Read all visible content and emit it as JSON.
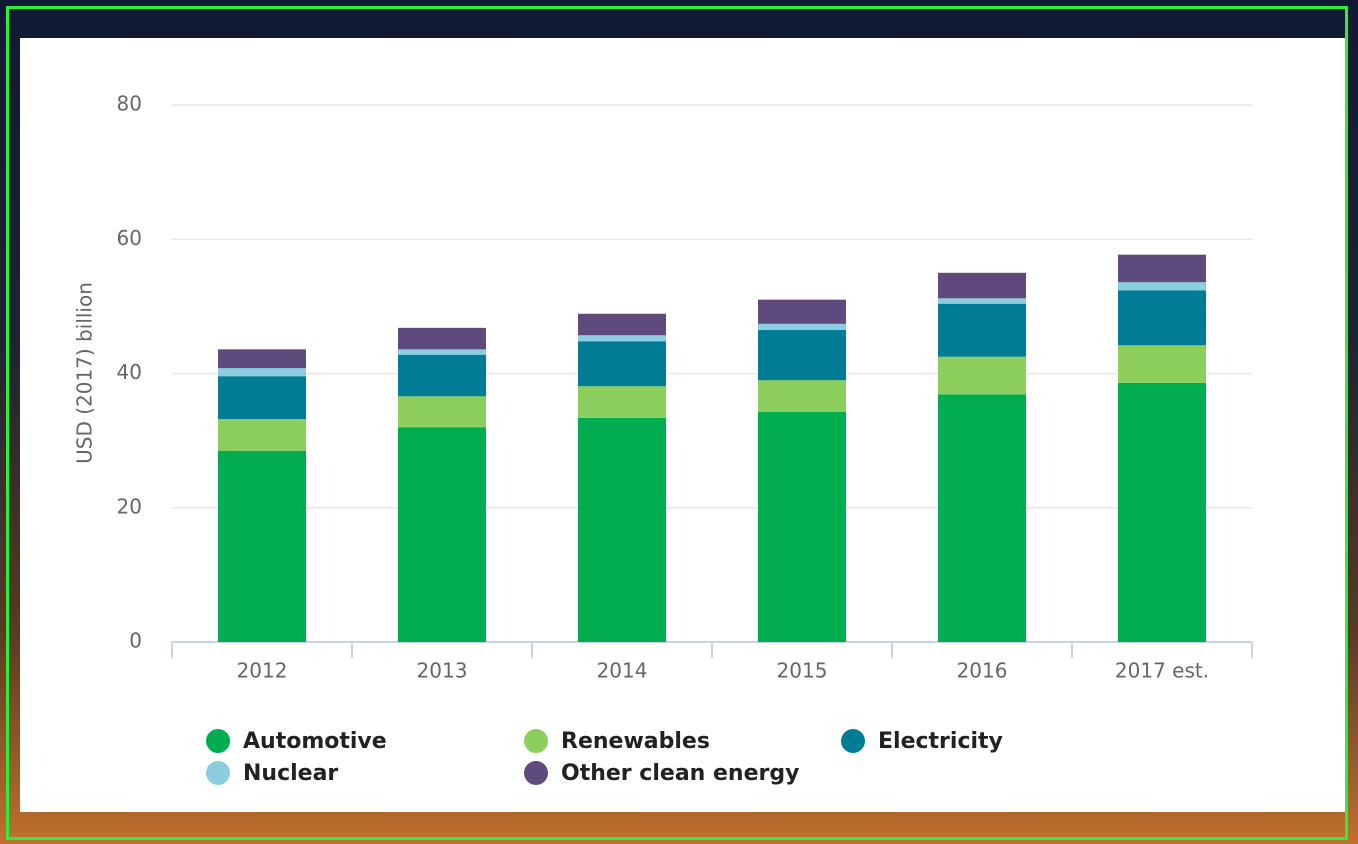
{
  "chart_data": {
    "type": "stacked_bar",
    "y_label": "USD (2017) billion",
    "categories": [
      "2012",
      "2013",
      "2014",
      "2015",
      "2016",
      "2017 est."
    ],
    "series": [
      {
        "name": "Automotive",
        "color": "#00ad50",
        "values": [
          28.5,
          32.0,
          33.4,
          34.3,
          36.9,
          38.6
        ]
      },
      {
        "name": "Renewables",
        "color": "#8ccf5c",
        "values": [
          4.7,
          4.6,
          4.7,
          4.7,
          5.6,
          5.6
        ]
      },
      {
        "name": "Electricity",
        "color": "#007d94",
        "values": [
          6.4,
          6.2,
          6.7,
          7.5,
          7.9,
          8.2
        ]
      },
      {
        "name": "Nuclear",
        "color": "#8ccde2",
        "values": [
          1.2,
          0.8,
          0.9,
          0.9,
          0.8,
          1.2
        ]
      },
      {
        "name": "Other clean energy",
        "color": "#5e4a7c",
        "values": [
          2.8,
          3.2,
          3.2,
          3.6,
          3.8,
          4.1
        ]
      }
    ],
    "ylim": [
      0,
      80
    ],
    "yticks": [
      0,
      20,
      40,
      60,
      80
    ],
    "grid": true
  }
}
